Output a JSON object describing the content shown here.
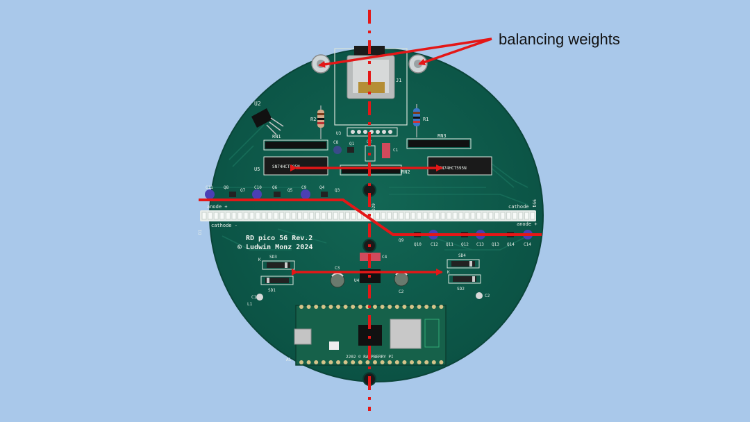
{
  "annotation": {
    "label": "balancing weights"
  },
  "board": {
    "title_line1": "RD pico 56 Rev.2",
    "title_line2": "© Ludwin Monz 2024",
    "chip_u5": "SN74HCT595N",
    "chip_right": "SN74HCT595N",
    "silk": {
      "u2": "U2",
      "rn1": "RN1",
      "rn2": "RN2",
      "rn3": "RN3",
      "r1": "R1",
      "r2": "R2",
      "u3": "U3",
      "u4": "U4",
      "u5": "U5",
      "j1": "J1",
      "q1": "Q1",
      "q2": "Q2",
      "c1": "C1",
      "c2": "C2",
      "c3": "C3",
      "c4": "C4",
      "c8": "C8",
      "c9": "C9",
      "c10": "C10",
      "c11": "C11",
      "c12": "C12",
      "c13": "C13",
      "c14": "C14",
      "q3": "Q3",
      "q4": "Q4",
      "q5": "Q5",
      "q6": "Q6",
      "q7": "Q7",
      "q8": "Q8",
      "q9": "Q9",
      "q10": "Q10",
      "q11": "Q11",
      "q12": "Q12",
      "q13": "Q13",
      "q14": "Q14",
      "sd1": "SD1",
      "sd2": "SD2",
      "sd3": "SD3",
      "sd4": "SD4",
      "l1": "L1",
      "a1": "A1",
      "d29": "D29",
      "d56": "D56",
      "d1": "D1",
      "anode_left": "anode +",
      "cathode_left": "cathode -",
      "anode_right": "anode +",
      "cathode_right": "cathode -",
      "k_left": "K",
      "k_right": "K",
      "pico_text": "2202 © RASPBERRY PI"
    }
  },
  "colors": {
    "background": "#a9c8ea",
    "pcb": "#0e5c4d",
    "annotation_red": "#e41717",
    "silkscreen": "#e9efe9"
  }
}
